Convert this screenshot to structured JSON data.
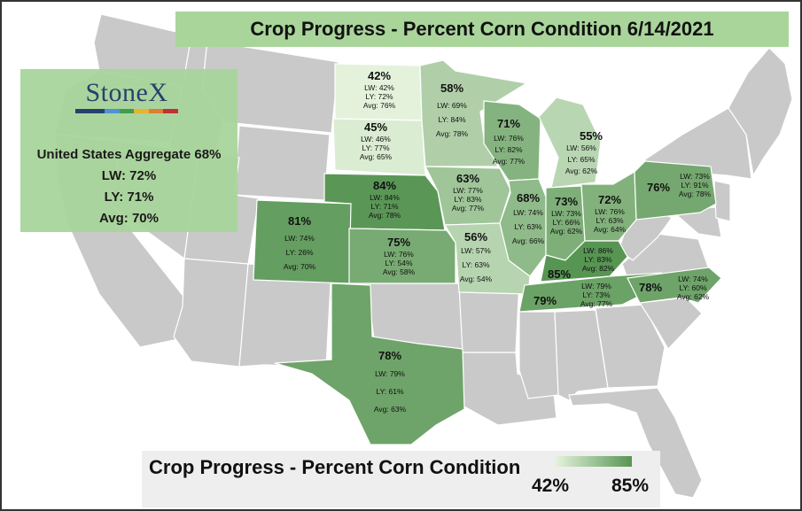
{
  "title": "Crop Progress - Percent Corn Condition 6/14/2021",
  "logo": {
    "name": "StoneX",
    "bar_colors": [
      "#1f3a68",
      "#1f3a68",
      "#4a8fd0",
      "#3a9a45",
      "#e6b32a",
      "#e07a2a",
      "#c0282d"
    ]
  },
  "aggregate": {
    "title": "United States Aggregate 68%",
    "lw": "LW: 72%",
    "ly": "LY: 71%",
    "avg": "Avg: 70%"
  },
  "legend": {
    "title": "Crop Progress - Percent Corn Condition",
    "min": "42%",
    "max": "85%",
    "min_value": 42,
    "max_value": 85,
    "min_color": "#e4f2dc",
    "max_color": "#579553"
  },
  "colors": {
    "base_state": "#c9c9c9",
    "state_border": "#ffffff",
    "title_banner": "#a9d59b"
  },
  "states": [
    {
      "id": "nd",
      "name": "North Dakota",
      "value": 42,
      "pct": "42%",
      "lw": "LW: 42%",
      "ly": "LY: 72%",
      "avg": "Avg: 76%"
    },
    {
      "id": "mn",
      "name": "Minnesota",
      "value": 58,
      "pct": "58%",
      "lw": "LW: 69%",
      "ly": "LY: 84%",
      "avg": "Avg: 78%"
    },
    {
      "id": "sd",
      "name": "South Dakota",
      "value": 45,
      "pct": "45%",
      "lw": "LW: 46%",
      "ly": "LY: 77%",
      "avg": "Avg: 65%"
    },
    {
      "id": "wi",
      "name": "Wisconsin",
      "value": 71,
      "pct": "71%",
      "lw": "LW: 76%",
      "ly": "LY: 82%",
      "avg": "Avg: 77%"
    },
    {
      "id": "mi",
      "name": "Michigan",
      "value": 55,
      "pct": "55%",
      "lw": "LW: 56%",
      "ly": "LY: 65%",
      "avg": "Avg: 62%"
    },
    {
      "id": "ne",
      "name": "Nebraska",
      "value": 84,
      "pct": "84%",
      "lw": "LW: 84%",
      "ly": "LY: 71%",
      "avg": "Avg: 78%"
    },
    {
      "id": "ia",
      "name": "Iowa",
      "value": 63,
      "pct": "63%",
      "lw": "LW: 77%",
      "ly": "LY: 83%",
      "avg": "Avg: 77%"
    },
    {
      "id": "il",
      "name": "Illinois",
      "value": 68,
      "pct": "68%",
      "lw": "LW: 74%",
      "ly": "LY: 63%",
      "avg": "Avg: 66%"
    },
    {
      "id": "in",
      "name": "Indiana",
      "value": 73,
      "pct": "73%",
      "lw": "LW: 73%",
      "ly": "LY: 66%",
      "avg": "Avg: 62%"
    },
    {
      "id": "oh",
      "name": "Ohio",
      "value": 72,
      "pct": "72%",
      "lw": "LW: 76%",
      "ly": "LY: 63%",
      "avg": "Avg: 64%"
    },
    {
      "id": "pa",
      "name": "Pennsylvania",
      "value": 76,
      "pct": "76%",
      "lw": "LW: 73%",
      "ly": "LY: 91%",
      "avg": "Avg: 78%"
    },
    {
      "id": "co",
      "name": "Colorado",
      "value": 81,
      "pct": "81%",
      "lw": "LW: 74%",
      "ly": "LY: 26%",
      "avg": "Avg: 70%"
    },
    {
      "id": "ks",
      "name": "Kansas",
      "value": 75,
      "pct": "75%",
      "lw": "LW: 76%",
      "ly": "LY: 54%",
      "avg": "Avg: 58%"
    },
    {
      "id": "mo",
      "name": "Missouri",
      "value": 56,
      "pct": "56%",
      "lw": "LW: 57%",
      "ly": "LY: 63%",
      "avg": "Avg: 54%"
    },
    {
      "id": "ky",
      "name": "Kentucky",
      "value": 85,
      "pct": "85%",
      "lw": "LW: 86%",
      "ly": "LY: 83%",
      "avg": "Avg: 82%"
    },
    {
      "id": "tn",
      "name": "Tennessee",
      "value": 79,
      "pct": "79%",
      "lw": "LW: 79%",
      "ly": "LY: 73%",
      "avg": "Avg: 77%"
    },
    {
      "id": "nc",
      "name": "North Carolina",
      "value": 78,
      "pct": "78%",
      "lw": "LW: 74%",
      "ly": "LY: 60%",
      "avg": "Avg: 62%"
    },
    {
      "id": "tx",
      "name": "Texas",
      "value": 78,
      "pct": "78%",
      "lw": "LW: 79%",
      "ly": "LY: 61%",
      "avg": "Avg: 63%"
    }
  ]
}
